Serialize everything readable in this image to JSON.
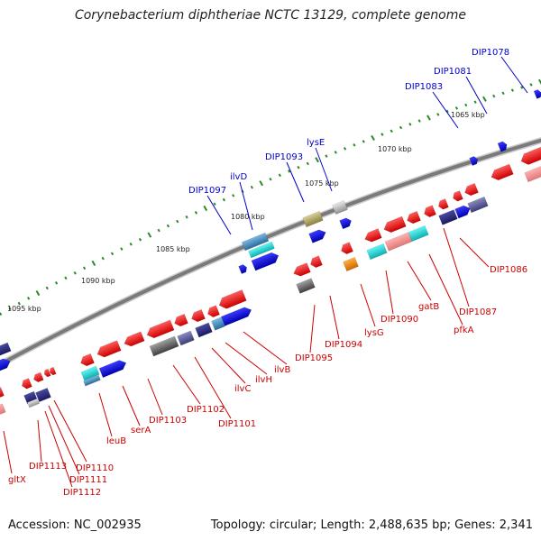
{
  "title": "Corynebacterium diphtheriae NCTC 13129, complete genome",
  "footer": {
    "accession": "Accession: NC_002935",
    "summary": "Topology: circular; Length: 2,488,635 bp; Genes: 2,341"
  },
  "colors": {
    "forward_label": "#0000cc",
    "reverse_label": "#cc0000",
    "backbone": "#777777",
    "tick": "#2a8a2a"
  },
  "scale": {
    "unit": "kbp",
    "ticks": [
      {
        "label": "1065 kbp",
        "value": 1065
      },
      {
        "label": "1070 kbp",
        "value": 1070
      },
      {
        "label": "1075 kbp",
        "value": 1075
      },
      {
        "label": "1080 kbp",
        "value": 1080
      },
      {
        "label": "1085 kbp",
        "value": 1085
      },
      {
        "label": "1090 kbp",
        "value": 1090
      },
      {
        "label": "1095 kbp",
        "value": 1095
      }
    ]
  },
  "forward_labels": [
    {
      "name": "DIP1078"
    },
    {
      "name": "DIP1081"
    },
    {
      "name": "DIP1083"
    },
    {
      "name": "lysE"
    },
    {
      "name": "DIP1093"
    },
    {
      "name": "ilvD"
    },
    {
      "name": "DIP1097"
    }
  ],
  "reverse_labels": [
    {
      "name": "DIP1086"
    },
    {
      "name": "DIP1087"
    },
    {
      "name": "pfkA"
    },
    {
      "name": "gatB"
    },
    {
      "name": "DIP1090"
    },
    {
      "name": "lysG"
    },
    {
      "name": "DIP1094"
    },
    {
      "name": "DIP1095"
    },
    {
      "name": "ilvB"
    },
    {
      "name": "ilvH"
    },
    {
      "name": "ilvC"
    },
    {
      "name": "DIP1101"
    },
    {
      "name": "DIP1102"
    },
    {
      "name": "DIP1103"
    },
    {
      "name": "serA"
    },
    {
      "name": "leuB"
    },
    {
      "name": "DIP1110"
    },
    {
      "name": "DIP1111"
    },
    {
      "name": "DIP1112"
    },
    {
      "name": "DIP1113"
    },
    {
      "name": "gltX"
    }
  ]
}
